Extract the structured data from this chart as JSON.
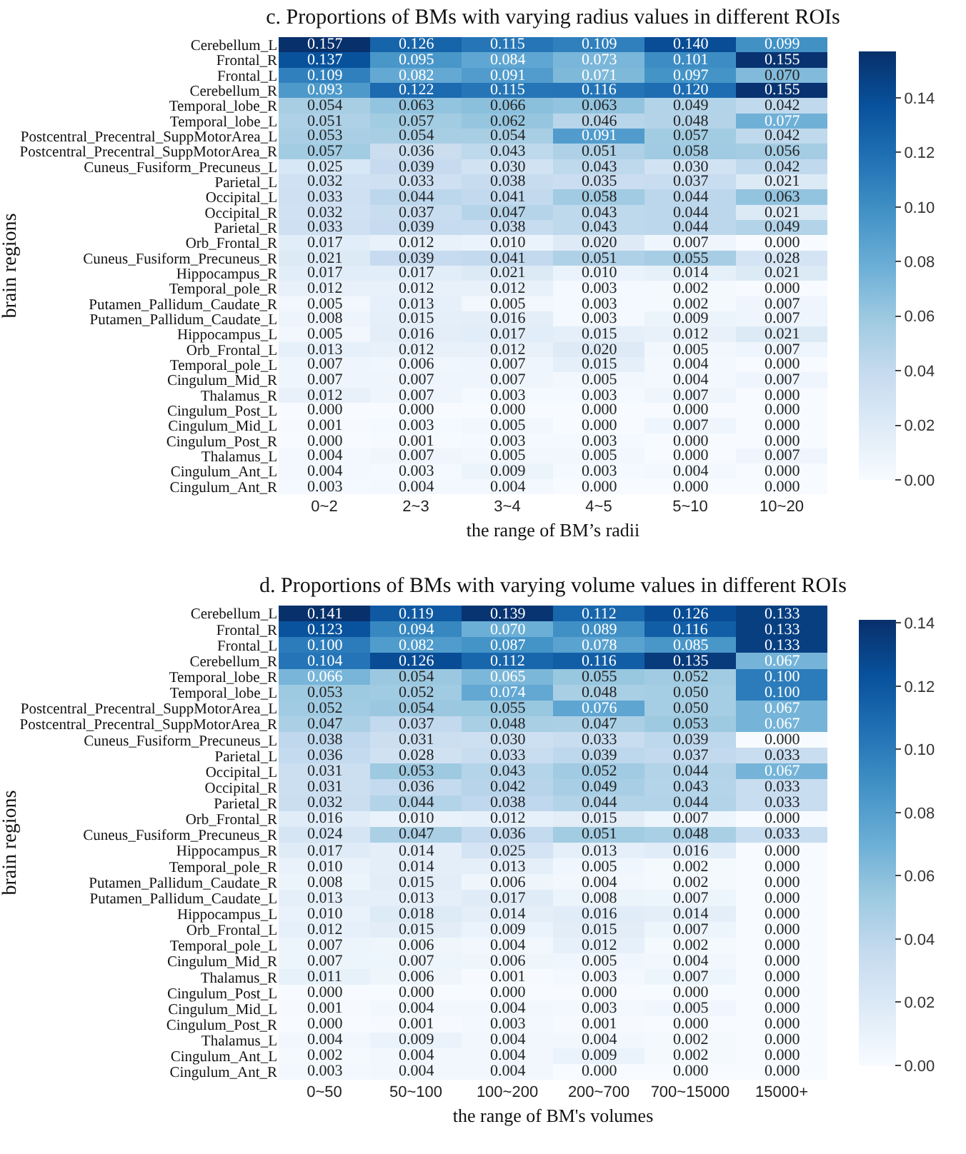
{
  "chart_data": [
    {
      "type": "heatmap",
      "title": "c. Proportions of BMs with varying radius values in different ROIs",
      "xlabel": "the range of BM’s radii",
      "ylabel": "brain regions",
      "categories": [
        "0~2",
        "2~3",
        "3~4",
        "4~5",
        "5~10",
        "10~20"
      ],
      "y_categories": [
        "Cerebellum_L",
        "Frontal_R",
        "Frontal_L",
        "Cerebellum_R",
        "Temporal_lobe_R",
        "Temporal_lobe_L",
        "Postcentral_Precentral_SuppMotorArea_L",
        "Postcentral_Precentral_SuppMotorArea_R",
        "Cuneus_Fusiform_Precuneus_L",
        "Parietal_L",
        "Occipital_L",
        "Occipital_R",
        "Parietal_R",
        "Orb_Frontal_R",
        "Cuneus_Fusiform_Precuneus_R",
        "Hippocampus_R",
        "Temporal_pole_R",
        "Putamen_Pallidum_Caudate_R",
        "Putamen_Pallidum_Caudate_L",
        "Hippocampus_L",
        "Orb_Frontal_L",
        "Temporal_pole_L",
        "Cingulum_Mid_R",
        "Thalamus_R",
        "Cingulum_Post_L",
        "Cingulum_Mid_L",
        "Cingulum_Post_R",
        "Thalamus_L",
        "Cingulum_Ant_L",
        "Cingulum_Ant_R"
      ],
      "cells": [
        [
          0.157,
          0.126,
          0.115,
          0.109,
          0.14,
          0.099
        ],
        [
          0.137,
          0.095,
          0.084,
          0.073,
          0.101,
          0.155
        ],
        [
          0.109,
          0.082,
          0.091,
          0.071,
          0.097,
          0.07
        ],
        [
          0.093,
          0.122,
          0.115,
          0.116,
          0.12,
          0.155
        ],
        [
          0.054,
          0.063,
          0.066,
          0.063,
          0.049,
          0.042
        ],
        [
          0.051,
          0.057,
          0.062,
          0.046,
          0.048,
          0.077
        ],
        [
          0.053,
          0.054,
          0.054,
          0.091,
          0.057,
          0.042
        ],
        [
          0.057,
          0.036,
          0.043,
          0.051,
          0.058,
          0.056
        ],
        [
          0.025,
          0.039,
          0.03,
          0.043,
          0.03,
          0.042
        ],
        [
          0.032,
          0.033,
          0.038,
          0.035,
          0.037,
          0.021
        ],
        [
          0.033,
          0.044,
          0.041,
          0.058,
          0.044,
          0.063
        ],
        [
          0.032,
          0.037,
          0.047,
          0.043,
          0.044,
          0.021
        ],
        [
          0.033,
          0.039,
          0.038,
          0.043,
          0.044,
          0.049
        ],
        [
          0.017,
          0.012,
          0.01,
          0.02,
          0.007,
          0.0
        ],
        [
          0.021,
          0.039,
          0.041,
          0.051,
          0.055,
          0.028
        ],
        [
          0.017,
          0.017,
          0.021,
          0.01,
          0.014,
          0.021
        ],
        [
          0.012,
          0.012,
          0.012,
          0.003,
          0.002,
          0.0
        ],
        [
          0.005,
          0.013,
          0.005,
          0.003,
          0.002,
          0.007
        ],
        [
          0.008,
          0.015,
          0.016,
          0.003,
          0.009,
          0.007
        ],
        [
          0.005,
          0.016,
          0.017,
          0.015,
          0.012,
          0.021
        ],
        [
          0.013,
          0.012,
          0.012,
          0.02,
          0.005,
          0.007
        ],
        [
          0.007,
          0.006,
          0.007,
          0.015,
          0.004,
          0.0
        ],
        [
          0.007,
          0.007,
          0.007,
          0.005,
          0.004,
          0.007
        ],
        [
          0.012,
          0.007,
          0.003,
          0.003,
          0.007,
          0.0
        ],
        [
          0.0,
          0.0,
          0.0,
          0.0,
          0.0,
          0.0
        ],
        [
          0.001,
          0.003,
          0.005,
          0.0,
          0.007,
          0.0
        ],
        [
          0.0,
          0.001,
          0.003,
          0.003,
          0.0,
          0.0
        ],
        [
          0.004,
          0.007,
          0.005,
          0.005,
          0.0,
          0.007
        ],
        [
          0.004,
          0.003,
          0.009,
          0.003,
          0.004,
          0.0
        ],
        [
          0.003,
          0.004,
          0.004,
          0.0,
          0.0,
          0.0
        ]
      ],
      "cell_labels": [
        [
          "0.157",
          "0.126",
          "0.115",
          "0.109",
          "0.140",
          "0.099"
        ],
        [
          "0.137",
          "0.095",
          "0.084",
          "0.073",
          "0.101",
          "0.155"
        ],
        [
          "0.109",
          "0.082",
          "0.091",
          "0.071",
          "0.097",
          "0.070"
        ],
        [
          "0.093",
          "0.122",
          "0.115",
          "0.116",
          "0.120",
          "0.155"
        ],
        [
          "0.054",
          "0.063",
          "0.066",
          "0.063",
          "0.049",
          "0.042"
        ],
        [
          "0.051",
          "0.057",
          "0.062",
          "0.046",
          "0.048",
          "0.077"
        ],
        [
          "0.053",
          "0.054",
          "0.054",
          "0.091",
          "0.057",
          "0.042"
        ],
        [
          "0.057",
          "0.036",
          "0.043",
          "0.051",
          "0.058",
          "0.056"
        ],
        [
          "0.025",
          "0.039",
          "0.030",
          "0.043",
          "0.030",
          "0.042"
        ],
        [
          "0.032",
          "0.033",
          "0.038",
          "0.035",
          "0.037",
          "0.021"
        ],
        [
          "0.033",
          "0.044",
          "0.041",
          "0.058",
          "0.044",
          "0.063"
        ],
        [
          "0.032",
          "0.037",
          "0.047",
          "0.043",
          "0.044",
          "0.021"
        ],
        [
          "0.033",
          "0.039",
          "0.038",
          "0.043",
          "0.044",
          "0.049"
        ],
        [
          "0.017",
          "0.012",
          "0.010",
          "0.020",
          "0.007",
          "0.000"
        ],
        [
          "0.021",
          "0.039",
          "0.041",
          "0.051",
          "0.055",
          "0.028"
        ],
        [
          "0.017",
          "0.017",
          "0.021",
          "0.010",
          "0.014",
          "0.021"
        ],
        [
          "0.012",
          "0.012",
          "0.012",
          "0.003",
          "0.002",
          "0.000"
        ],
        [
          "0.005",
          "0.013",
          "0.005",
          "0.003",
          "0.002",
          "0.007"
        ],
        [
          "0.008",
          "0.015",
          "0.016",
          "0.003",
          "0.009",
          "0.007"
        ],
        [
          "0.005",
          "0.016",
          "0.017",
          "0.015",
          "0.012",
          "0.021"
        ],
        [
          "0.013",
          "0.012",
          "0.012",
          "0.020",
          "0.005",
          "0.007"
        ],
        [
          "0.007",
          "0.006",
          "0.007",
          "0.015",
          "0.004",
          "0.000"
        ],
        [
          "0.007",
          "0.007",
          "0.007",
          "0.005",
          "0.004",
          "0.007"
        ],
        [
          "0.012",
          "0.007",
          "0.003",
          "0.003",
          "0.007",
          "0.000"
        ],
        [
          "0.000",
          "0.000",
          "0.000",
          "0.000",
          "0.000",
          "0.000"
        ],
        [
          "0.001",
          "0.003",
          "0.005",
          "0.000",
          "0.007",
          "0.000"
        ],
        [
          "0.000",
          "0.001",
          "0.003",
          "0.003",
          "0.000",
          "0.000"
        ],
        [
          "0.004",
          "0.007",
          "0.005",
          "0.005",
          "0.000",
          "0.007"
        ],
        [
          "0.004",
          "0.003",
          "0.009",
          "0.003",
          "0.004",
          "0.000"
        ],
        [
          "0.003",
          "0.004",
          "0.004",
          "0.000",
          "0.000",
          "0.000"
        ]
      ],
      "clim": [
        0,
        0.157
      ],
      "cticks": [
        {
          "value": 0,
          "label": "0.00"
        },
        {
          "value": 0.02,
          "label": "0.02"
        },
        {
          "value": 0.04,
          "label": "0.04"
        },
        {
          "value": 0.06,
          "label": "0.06"
        },
        {
          "value": 0.08,
          "label": "0.08"
        },
        {
          "value": 0.1,
          "label": "0.10"
        },
        {
          "value": 0.12,
          "label": "0.12"
        },
        {
          "value": 0.14,
          "label": "0.14"
        }
      ],
      "data_labels": true
    },
    {
      "type": "heatmap",
      "title": "d. Proportions of BMs with varying volume values in different ROIs",
      "xlabel": "the range of BM's volumes",
      "ylabel": "brain regions",
      "categories": [
        "0~50",
        "50~100",
        "100~200",
        "200~700",
        "700~15000",
        "15000+"
      ],
      "y_categories": [
        "Cerebellum_L",
        "Frontal_R",
        "Frontal_L",
        "Cerebellum_R",
        "Temporal_lobe_R",
        "Temporal_lobe_L",
        "Postcentral_Precentral_SuppMotorArea_L",
        "Postcentral_Precentral_SuppMotorArea_R",
        "Cuneus_Fusiform_Precuneus_L",
        "Parietal_L",
        "Occipital_L",
        "Occipital_R",
        "Parietal_R",
        "Orb_Frontal_R",
        "Cuneus_Fusiform_Precuneus_R",
        "Hippocampus_R",
        "Temporal_pole_R",
        "Putamen_Pallidum_Caudate_R",
        "Putamen_Pallidum_Caudate_L",
        "Hippocampus_L",
        "Orb_Frontal_L",
        "Temporal_pole_L",
        "Cingulum_Mid_R",
        "Thalamus_R",
        "Cingulum_Post_L",
        "Cingulum_Mid_L",
        "Cingulum_Post_R",
        "Thalamus_L",
        "Cingulum_Ant_L",
        "Cingulum_Ant_R"
      ],
      "cells": [
        [
          0.141,
          0.119,
          0.139,
          0.112,
          0.126,
          0.133
        ],
        [
          0.123,
          0.094,
          0.07,
          0.089,
          0.116,
          0.133
        ],
        [
          0.1,
          0.082,
          0.087,
          0.078,
          0.085,
          0.133
        ],
        [
          0.104,
          0.126,
          0.112,
          0.116,
          0.135,
          0.067
        ],
        [
          0.066,
          0.054,
          0.065,
          0.055,
          0.052,
          0.1
        ],
        [
          0.053,
          0.052,
          0.074,
          0.048,
          0.05,
          0.1
        ],
        [
          0.052,
          0.054,
          0.055,
          0.076,
          0.05,
          0.067
        ],
        [
          0.047,
          0.037,
          0.048,
          0.047,
          0.053,
          0.067
        ],
        [
          0.038,
          0.031,
          0.03,
          0.033,
          0.039,
          0.0
        ],
        [
          0.036,
          0.028,
          0.033,
          0.039,
          0.037,
          0.033
        ],
        [
          0.031,
          0.053,
          0.043,
          0.052,
          0.044,
          0.067
        ],
        [
          0.031,
          0.036,
          0.042,
          0.049,
          0.043,
          0.033
        ],
        [
          0.032,
          0.044,
          0.038,
          0.044,
          0.044,
          0.033
        ],
        [
          0.016,
          0.01,
          0.012,
          0.015,
          0.007,
          0.0
        ],
        [
          0.024,
          0.047,
          0.036,
          0.051,
          0.048,
          0.033
        ],
        [
          0.017,
          0.014,
          0.025,
          0.013,
          0.016,
          0.0
        ],
        [
          0.01,
          0.014,
          0.013,
          0.005,
          0.002,
          0.0
        ],
        [
          0.008,
          0.015,
          0.006,
          0.004,
          0.002,
          0.0
        ],
        [
          0.013,
          0.013,
          0.017,
          0.008,
          0.007,
          0.0
        ],
        [
          0.01,
          0.018,
          0.014,
          0.016,
          0.014,
          0.0
        ],
        [
          0.012,
          0.015,
          0.009,
          0.015,
          0.007,
          0.0
        ],
        [
          0.007,
          0.006,
          0.004,
          0.012,
          0.002,
          0.0
        ],
        [
          0.007,
          0.007,
          0.006,
          0.005,
          0.004,
          0.0
        ],
        [
          0.011,
          0.006,
          0.001,
          0.003,
          0.007,
          0.0
        ],
        [
          0.0,
          0.0,
          0.0,
          0.0,
          0.0,
          0.0
        ],
        [
          0.001,
          0.004,
          0.004,
          0.003,
          0.005,
          0.0
        ],
        [
          0.0,
          0.001,
          0.003,
          0.001,
          0.0,
          0.0
        ],
        [
          0.004,
          0.009,
          0.004,
          0.004,
          0.002,
          0.0
        ],
        [
          0.002,
          0.004,
          0.004,
          0.009,
          0.002,
          0.0
        ],
        [
          0.003,
          0.004,
          0.004,
          0.0,
          0.0,
          0.0
        ]
      ],
      "cell_labels": [
        [
          "0.141",
          "0.119",
          "0.139",
          "0.112",
          "0.126",
          "0.133"
        ],
        [
          "0.123",
          "0.094",
          "0.070",
          "0.089",
          "0.116",
          "0.133"
        ],
        [
          "0.100",
          "0.082",
          "0.087",
          "0.078",
          "0.085",
          "0.133"
        ],
        [
          "0.104",
          "0.126",
          "0.112",
          "0.116",
          "0.135",
          "0.067"
        ],
        [
          "0.066",
          "0.054",
          "0.065",
          "0.055",
          "0.052",
          "0.100"
        ],
        [
          "0.053",
          "0.052",
          "0.074",
          "0.048",
          "0.050",
          "0.100"
        ],
        [
          "0.052",
          "0.054",
          "0.055",
          "0.076",
          "0.050",
          "0.067"
        ],
        [
          "0.047",
          "0.037",
          "0.048",
          "0.047",
          "0.053",
          "0.067"
        ],
        [
          "0.038",
          "0.031",
          "0.030",
          "0.033",
          "0.039",
          "0.000"
        ],
        [
          "0.036",
          "0.028",
          "0.033",
          "0.039",
          "0.037",
          "0.033"
        ],
        [
          "0.031",
          "0.053",
          "0.043",
          "0.052",
          "0.044",
          "0.067"
        ],
        [
          "0.031",
          "0.036",
          "0.042",
          "0.049",
          "0.043",
          "0.033"
        ],
        [
          "0.032",
          "0.044",
          "0.038",
          "0.044",
          "0.044",
          "0.033"
        ],
        [
          "0.016",
          "0.010",
          "0.012",
          "0.015",
          "0.007",
          "0.000"
        ],
        [
          "0.024",
          "0.047",
          "0.036",
          "0.051",
          "0.048",
          "0.033"
        ],
        [
          "0.017",
          "0.014",
          "0.025",
          "0.013",
          "0.016",
          "0.000"
        ],
        [
          "0.010",
          "0.014",
          "0.013",
          "0.005",
          "0.002",
          "0.000"
        ],
        [
          "0.008",
          "0.015",
          "0.006",
          "0.004",
          "0.002",
          "0.000"
        ],
        [
          "0.013",
          "0.013",
          "0.017",
          "0.008",
          "0.007",
          "0.000"
        ],
        [
          "0.010",
          "0.018",
          "0.014",
          "0.016",
          "0.014",
          "0.000"
        ],
        [
          "0.012",
          "0.015",
          "0.009",
          "0.015",
          "0.007",
          "0.000"
        ],
        [
          "0.007",
          "0.006",
          "0.004",
          "0.012",
          "0.002",
          "0.000"
        ],
        [
          "0.007",
          "0.007",
          "0.006",
          "0.005",
          "0.004",
          "0.000"
        ],
        [
          "0.011",
          "0.006",
          "0.001",
          "0.003",
          "0.007",
          "0.000"
        ],
        [
          "0.000",
          "0.000",
          "0.000",
          "0.000",
          "0.000",
          "0.000"
        ],
        [
          "0.001",
          "0.004",
          "0.004",
          "0.003",
          "0.005",
          "0.000"
        ],
        [
          "0.000",
          "0.001",
          "0.003",
          "0.001",
          "0.000",
          "0.000"
        ],
        [
          "0.004",
          "0.009",
          "0.004",
          "0.004",
          "0.002",
          "0.000"
        ],
        [
          "0.002",
          "0.004",
          "0.004",
          "0.009",
          "0.002",
          "0.000"
        ],
        [
          "0.003",
          "0.004",
          "0.004",
          "0.000",
          "0.000",
          "0.000"
        ]
      ],
      "clim": [
        0,
        0.141
      ],
      "cticks": [
        {
          "value": 0,
          "label": "0.00"
        },
        {
          "value": 0.02,
          "label": "0.02"
        },
        {
          "value": 0.04,
          "label": "0.04"
        },
        {
          "value": 0.06,
          "label": "0.06"
        },
        {
          "value": 0.08,
          "label": "0.08"
        },
        {
          "value": 0.1,
          "label": "0.10"
        },
        {
          "value": 0.12,
          "label": "0.12"
        },
        {
          "value": 0.14,
          "label": "0.14"
        }
      ],
      "data_labels": true
    }
  ]
}
